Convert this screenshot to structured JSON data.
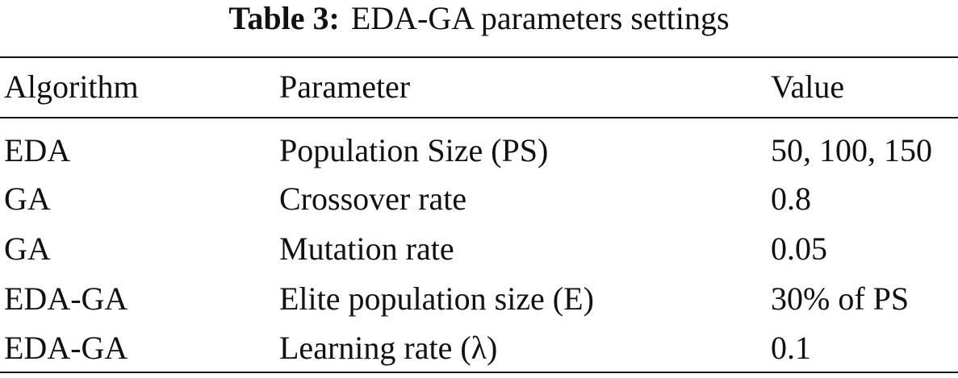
{
  "caption": {
    "label": "Table 3:",
    "text": "EDA-GA parameters settings"
  },
  "table": {
    "header": [
      "Algorithm",
      "Parameter",
      "Value"
    ],
    "rows": [
      [
        "EDA",
        "Population Size (PS)",
        "50, 100, 150"
      ],
      [
        "GA",
        "Crossover rate",
        "0.8"
      ],
      [
        "GA",
        "Mutation rate",
        "0.05"
      ],
      [
        "EDA-GA",
        "Elite population size (E)",
        "30% of PS"
      ],
      [
        "EDA-GA",
        "Learning rate (λ)",
        "0.1"
      ]
    ]
  }
}
